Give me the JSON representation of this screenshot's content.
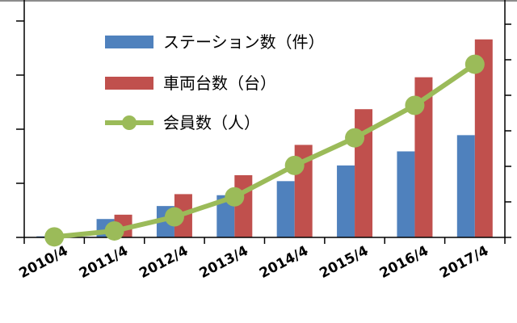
{
  "chart_data": {
    "type": "bar",
    "categories": [
      "2010/4",
      "2011/4",
      "2012/4",
      "2013/4",
      "2014/4",
      "2015/4",
      "2016/4",
      "2017/4"
    ],
    "ylim": [
      0,
      400
    ],
    "series": [
      {
        "name": "ステーション数（件）",
        "kind": "bar",
        "color": "#4f81bd",
        "values": [
          2,
          34,
          58,
          78,
          104,
          133,
          159,
          189
        ]
      },
      {
        "name": "車両台数（台）",
        "kind": "bar",
        "color": "#c0504d",
        "values": [
          0,
          42,
          80,
          115,
          171,
          237,
          296,
          366
        ]
      },
      {
        "name": "会員数（人）",
        "kind": "line",
        "color": "#9bbb59",
        "values": [
          1,
          12,
          38,
          75,
          133,
          184,
          244,
          320
        ]
      }
    ],
    "legend_position": "top-left",
    "grid": false
  }
}
